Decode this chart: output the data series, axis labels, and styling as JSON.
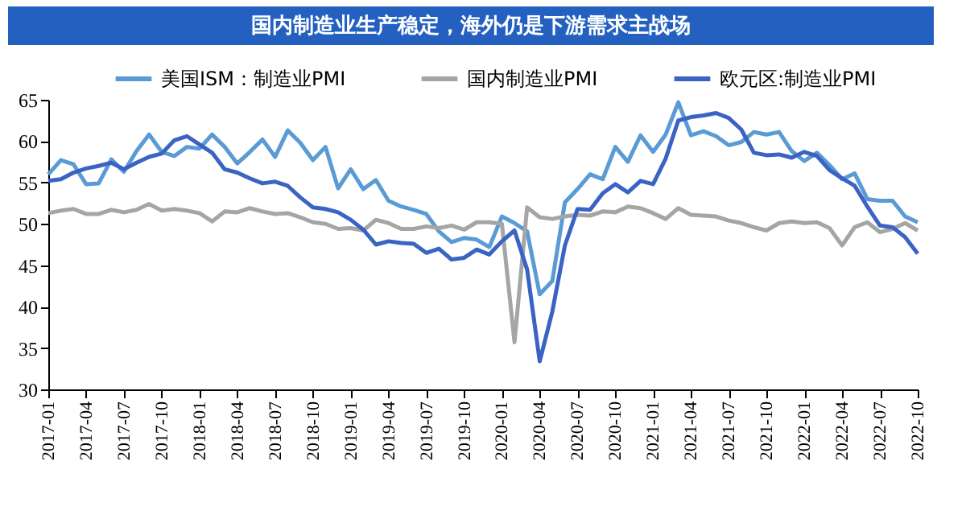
{
  "chart_data": {
    "type": "line",
    "title": "国内制造业生产稳定，海外仍是下游需求主战场",
    "categories": [
      "2017-01",
      null,
      null,
      "2017-04",
      null,
      null,
      "2017-07",
      null,
      null,
      "2017-10",
      null,
      null,
      "2018-01",
      null,
      null,
      "2018-04",
      null,
      null,
      "2018-07",
      null,
      null,
      "2018-10",
      null,
      null,
      "2019-01",
      null,
      null,
      "2019-04",
      null,
      null,
      "2019-07",
      null,
      null,
      "2019-10",
      null,
      null,
      "2020-01",
      null,
      null,
      "2020-04",
      null,
      null,
      "2020-07",
      null,
      null,
      "2020-10",
      null,
      null,
      "2021-01",
      null,
      null,
      "2021-04",
      null,
      null,
      "2021-07",
      null,
      null,
      "2021-10",
      null,
      null,
      "2022-01",
      null,
      null,
      "2022-04",
      null,
      null,
      "2022-07",
      null,
      null,
      "2022-10"
    ],
    "series": [
      {
        "name": "美国ISM：制造业PMI",
        "color": "#5b9bd5",
        "values": [
          56.0,
          57.7,
          57.2,
          54.8,
          54.9,
          57.8,
          56.3,
          58.8,
          60.8,
          58.7,
          58.2,
          59.3,
          59.1,
          60.8,
          59.3,
          57.3,
          58.7,
          60.2,
          58.1,
          61.3,
          59.8,
          57.7,
          59.3,
          54.3,
          56.6,
          54.2,
          55.3,
          52.8,
          52.1,
          51.7,
          51.2,
          49.1,
          47.8,
          48.3,
          48.1,
          47.2,
          50.9,
          50.1,
          49.1,
          41.5,
          43.1,
          52.6,
          54.2,
          56.0,
          55.4,
          59.3,
          57.5,
          60.7,
          58.7,
          60.8,
          64.7,
          60.7,
          61.2,
          60.6,
          59.5,
          59.9,
          61.1,
          60.8,
          61.1,
          58.8,
          57.6,
          58.6,
          57.1,
          55.4,
          56.1,
          53.0,
          52.8,
          52.8,
          50.9,
          50.2
        ]
      },
      {
        "name": "国内制造业PMI",
        "color": "#a5a5a5",
        "values": [
          51.3,
          51.6,
          51.8,
          51.2,
          51.2,
          51.7,
          51.4,
          51.7,
          52.4,
          51.6,
          51.8,
          51.6,
          51.3,
          50.3,
          51.5,
          51.4,
          51.9,
          51.5,
          51.2,
          51.3,
          50.8,
          50.2,
          50.0,
          49.4,
          49.5,
          49.2,
          50.5,
          50.1,
          49.4,
          49.4,
          49.7,
          49.5,
          49.8,
          49.3,
          50.2,
          50.2,
          50.0,
          35.7,
          52.0,
          50.8,
          50.6,
          50.9,
          51.1,
          51.0,
          51.5,
          51.4,
          52.1,
          51.9,
          51.3,
          50.6,
          51.9,
          51.1,
          51.0,
          50.9,
          50.4,
          50.1,
          49.6,
          49.2,
          50.1,
          50.3,
          50.1,
          50.2,
          49.5,
          47.4,
          49.6,
          50.2,
          49.0,
          49.4,
          50.1,
          49.2
        ]
      },
      {
        "name": "欧元区:制造业PMI",
        "color": "#3a63c4",
        "values": [
          55.2,
          55.4,
          56.2,
          56.7,
          57.0,
          57.4,
          56.6,
          57.4,
          58.1,
          58.5,
          60.1,
          60.6,
          59.6,
          58.6,
          56.6,
          56.2,
          55.5,
          54.9,
          55.1,
          54.6,
          53.2,
          52.0,
          51.8,
          51.4,
          50.5,
          49.3,
          47.5,
          47.9,
          47.7,
          47.6,
          46.5,
          47.0,
          45.7,
          45.9,
          46.9,
          46.3,
          47.9,
          49.2,
          44.5,
          33.4,
          39.4,
          47.4,
          51.8,
          51.7,
          53.7,
          54.8,
          53.8,
          55.2,
          54.8,
          57.9,
          62.5,
          62.9,
          63.1,
          63.4,
          62.8,
          61.4,
          58.6,
          58.3,
          58.4,
          58.0,
          58.7,
          58.2,
          56.5,
          55.5,
          54.6,
          52.1,
          49.8,
          49.6,
          48.4,
          46.4
        ]
      }
    ],
    "ylim": [
      30,
      65
    ],
    "yticks": [
      30,
      35,
      40,
      45,
      50,
      55,
      60,
      65
    ],
    "grid": false,
    "legend": "top",
    "marker": "none",
    "line_style": "solid"
  }
}
